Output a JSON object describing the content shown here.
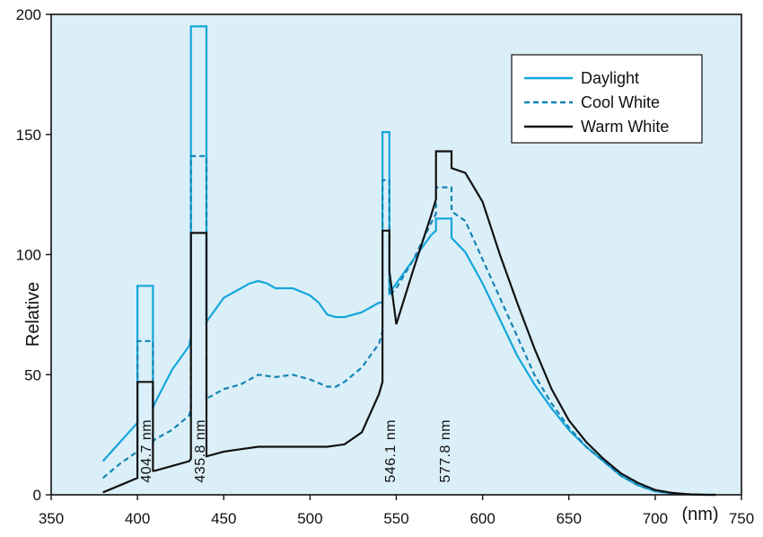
{
  "chart_data": {
    "type": "line",
    "xlabel": "(nm)",
    "ylabel": "Relative",
    "xlim": [
      350,
      750
    ],
    "ylim": [
      0,
      200
    ],
    "xticks": [
      350,
      400,
      450,
      500,
      550,
      600,
      650,
      700,
      750
    ],
    "yticks": [
      0,
      50,
      100,
      150,
      200
    ],
    "grid": false,
    "legend_position": "top-right",
    "colors": {
      "background": "#dbeff8",
      "daylight": "#14a6dc",
      "cool_white": "#1284b4",
      "warm_white": "#111111"
    },
    "series": [
      {
        "name": "Daylight",
        "style": "solid",
        "x": [
          380,
          390,
          400,
          400,
          409,
          409,
          410,
          420,
          430,
          431,
          431,
          440,
          440,
          450,
          460,
          465,
          470,
          475,
          480,
          490,
          500,
          505,
          510,
          515,
          520,
          530,
          540,
          542,
          542,
          546,
          546,
          548,
          550,
          560,
          570,
          573,
          573,
          582,
          582,
          590,
          600,
          610,
          620,
          630,
          640,
          650,
          660,
          670,
          680,
          690,
          700,
          710,
          720,
          730,
          735
        ],
        "y": [
          14,
          22,
          30,
          87,
          87,
          36,
          38,
          52,
          62,
          66,
          195,
          195,
          72,
          82,
          86,
          88,
          89,
          88,
          86,
          86,
          83,
          80,
          75,
          74,
          74,
          76,
          80,
          80,
          151,
          151,
          84,
          86,
          88,
          98,
          108,
          110,
          115,
          115,
          107,
          101,
          88,
          73,
          58,
          46,
          36,
          27,
          20,
          14,
          8,
          4,
          1.5,
          0.5,
          0.2,
          0,
          0
        ]
      },
      {
        "name": "Cool White",
        "style": "dashed",
        "x": [
          380,
          390,
          400,
          400,
          409,
          409,
          410,
          420,
          430,
          431,
          431,
          440,
          440,
          450,
          460,
          470,
          480,
          490,
          500,
          510,
          515,
          520,
          530,
          540,
          542,
          542,
          546,
          546,
          550,
          560,
          570,
          573,
          573,
          582,
          582,
          590,
          600,
          610,
          620,
          630,
          640,
          650,
          660,
          670,
          680,
          690,
          700,
          710,
          720,
          730,
          735
        ],
        "y": [
          7,
          13,
          18,
          64,
          64,
          22,
          23,
          27,
          33,
          36,
          141,
          141,
          40,
          44,
          46,
          50,
          49,
          50,
          48,
          45,
          45,
          47,
          53,
          63,
          68,
          131,
          131,
          83,
          86,
          98,
          113,
          117,
          128,
          128,
          118,
          114,
          98,
          82,
          66,
          50,
          38,
          28,
          20,
          14,
          8,
          4,
          1.5,
          0.5,
          0.2,
          0,
          0
        ]
      },
      {
        "name": "Warm White",
        "style": "solid",
        "x": [
          380,
          390,
          400,
          400,
          409,
          409,
          410,
          420,
          430,
          431,
          431,
          440,
          440,
          450,
          460,
          470,
          480,
          490,
          500,
          510,
          520,
          530,
          540,
          542,
          542,
          546,
          546,
          550,
          560,
          570,
          573,
          573,
          582,
          582,
          590,
          600,
          610,
          620,
          630,
          640,
          650,
          660,
          670,
          680,
          690,
          700,
          710,
          720,
          730,
          735
        ],
        "y": [
          1,
          4,
          7,
          47,
          47,
          10,
          10,
          12,
          14,
          15,
          109,
          109,
          16,
          18,
          19,
          20,
          20,
          20,
          20,
          20,
          21,
          26,
          42,
          47,
          110,
          110,
          93,
          71,
          94,
          116,
          123,
          143,
          143,
          136,
          134,
          122,
          100,
          80,
          61,
          44,
          31,
          22,
          15,
          9,
          5,
          2,
          0.8,
          0.2,
          0,
          0
        ]
      }
    ],
    "annotations": [
      {
        "text": "404.7 nm",
        "x": 404.7
      },
      {
        "text": "435.8 nm",
        "x": 435.8
      },
      {
        "text": "546.1 nm",
        "x": 546.1
      },
      {
        "text": "577.8 nm",
        "x": 577.8
      }
    ]
  }
}
